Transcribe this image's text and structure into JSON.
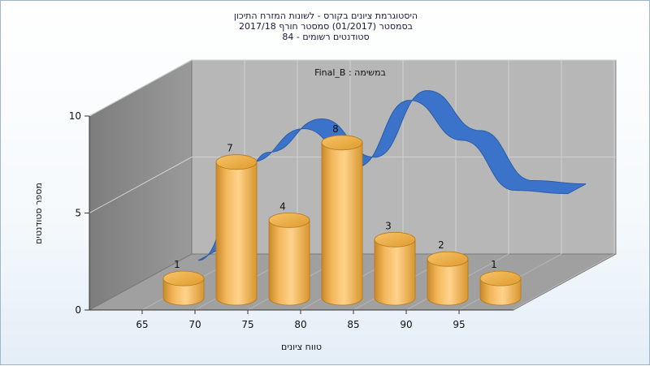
{
  "chart_data": {
    "type": "bar",
    "title_lines": [
      "היסטוגרמת ציונים בקורס - לשונות המזרח התיכון",
      "בסמסטר  (01/2017)  סמסטר חורף 2017/18",
      "סטודנטים רשומים - 84"
    ],
    "annotation": "במשימה : Final_B",
    "xlabel": "טווח ציונים",
    "ylabel": "מספר סטודנטים",
    "x_ticks": [
      "65",
      "70",
      "75",
      "80",
      "85",
      "90",
      "95"
    ],
    "y_ticks": [
      "0",
      "5",
      "10"
    ],
    "ylim": [
      0,
      10
    ],
    "values": [
      1,
      7,
      4,
      8,
      3,
      2,
      1
    ],
    "value_labels": [
      "1",
      "7",
      "4",
      "8",
      "3",
      "2",
      "1"
    ],
    "curve": [
      0.2,
      6.1,
      8.1,
      5.8,
      9.8,
      7.4,
      4.4,
      4.2
    ],
    "colors": {
      "bar": "#f0b24a",
      "bar_dark": "#c98a1e",
      "curve": "#3a73c9",
      "wall": "#b5b5b5",
      "side_wall": "#8c8c8c",
      "floor": "#9c9c9c"
    }
  }
}
